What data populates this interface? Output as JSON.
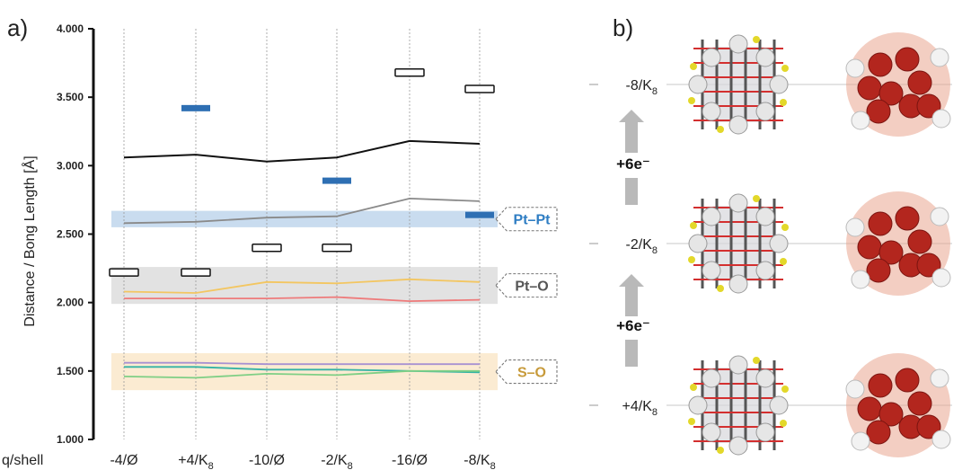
{
  "panel_a_label": "a)",
  "panel_b_label": "b)",
  "chart_data": {
    "type": "line",
    "ylabel": "Distance / Bong Length [Å]",
    "xlabel": "q/shell",
    "ylim": [
      1.0,
      4.0
    ],
    "y_ticks": [
      "1.000",
      "1.500",
      "2.000",
      "2.500",
      "3.000",
      "3.500",
      "4.000"
    ],
    "y_tick_values": [
      1.0,
      1.5,
      2.0,
      2.5,
      3.0,
      3.5,
      4.0
    ],
    "categories": [
      {
        "main": "-4/Ø",
        "sub": ""
      },
      {
        "main": "+4/K",
        "sub": "8"
      },
      {
        "main": "-10/Ø",
        "sub": ""
      },
      {
        "main": "-2/K",
        "sub": "8"
      },
      {
        "main": "-16/Ø",
        "sub": ""
      },
      {
        "main": "-8/K",
        "sub": "8"
      }
    ],
    "bands": [
      {
        "label": "Pt–Pt",
        "range": [
          2.55,
          2.67
        ],
        "fill": "#c9dcef",
        "text_color": "#2e7dc3"
      },
      {
        "label": "Pt–O",
        "range": [
          1.99,
          2.26
        ],
        "fill": "#e2e2e2",
        "text_color": "#555555"
      },
      {
        "label": "S–O",
        "range": [
          1.36,
          1.63
        ],
        "fill": "#fbebd2",
        "text_color": "#c79a3a"
      }
    ],
    "series": [
      {
        "color": "#111111",
        "values": [
          3.06,
          3.08,
          3.03,
          3.06,
          3.18,
          3.16
        ]
      },
      {
        "color": "#8a8a8a",
        "values": [
          2.58,
          2.59,
          2.62,
          2.63,
          2.76,
          2.74
        ]
      },
      {
        "color": "#f3c661",
        "values": [
          2.08,
          2.07,
          2.15,
          2.14,
          2.17,
          2.15
        ]
      },
      {
        "color": "#ee7b7b",
        "values": [
          2.03,
          2.03,
          2.03,
          2.04,
          2.01,
          2.02
        ]
      },
      {
        "color": "#a891d1",
        "values": [
          1.56,
          1.56,
          1.55,
          1.55,
          1.55,
          1.55
        ]
      },
      {
        "color": "#35b3a5",
        "values": [
          1.53,
          1.53,
          1.51,
          1.51,
          1.5,
          1.49
        ]
      },
      {
        "color": "#7fcf85",
        "values": [
          1.46,
          1.45,
          1.48,
          1.47,
          1.5,
          1.5
        ]
      }
    ],
    "open_markers": [
      {
        "category": 0,
        "value": 2.22
      },
      {
        "category": 1,
        "value": 2.22
      },
      {
        "category": 2,
        "value": 2.4
      },
      {
        "category": 3,
        "value": 2.4
      },
      {
        "category": 4,
        "value": 3.68
      },
      {
        "category": 5,
        "value": 3.56
      }
    ],
    "filled_markers": [
      {
        "category": 1,
        "value": 3.42
      },
      {
        "category": 3,
        "value": 2.89
      },
      {
        "category": 5,
        "value": 2.64
      }
    ],
    "marker_color": "#2e6fb3"
  },
  "panel_b": {
    "states": [
      {
        "main": "-8/K",
        "sub": "8"
      },
      {
        "main": "-2/K",
        "sub": "8"
      },
      {
        "main": "+4/K",
        "sub": "8"
      }
    ],
    "steps": [
      "+6e⁻",
      "+6e⁻"
    ],
    "arrow_color": "#b9b9b9"
  }
}
